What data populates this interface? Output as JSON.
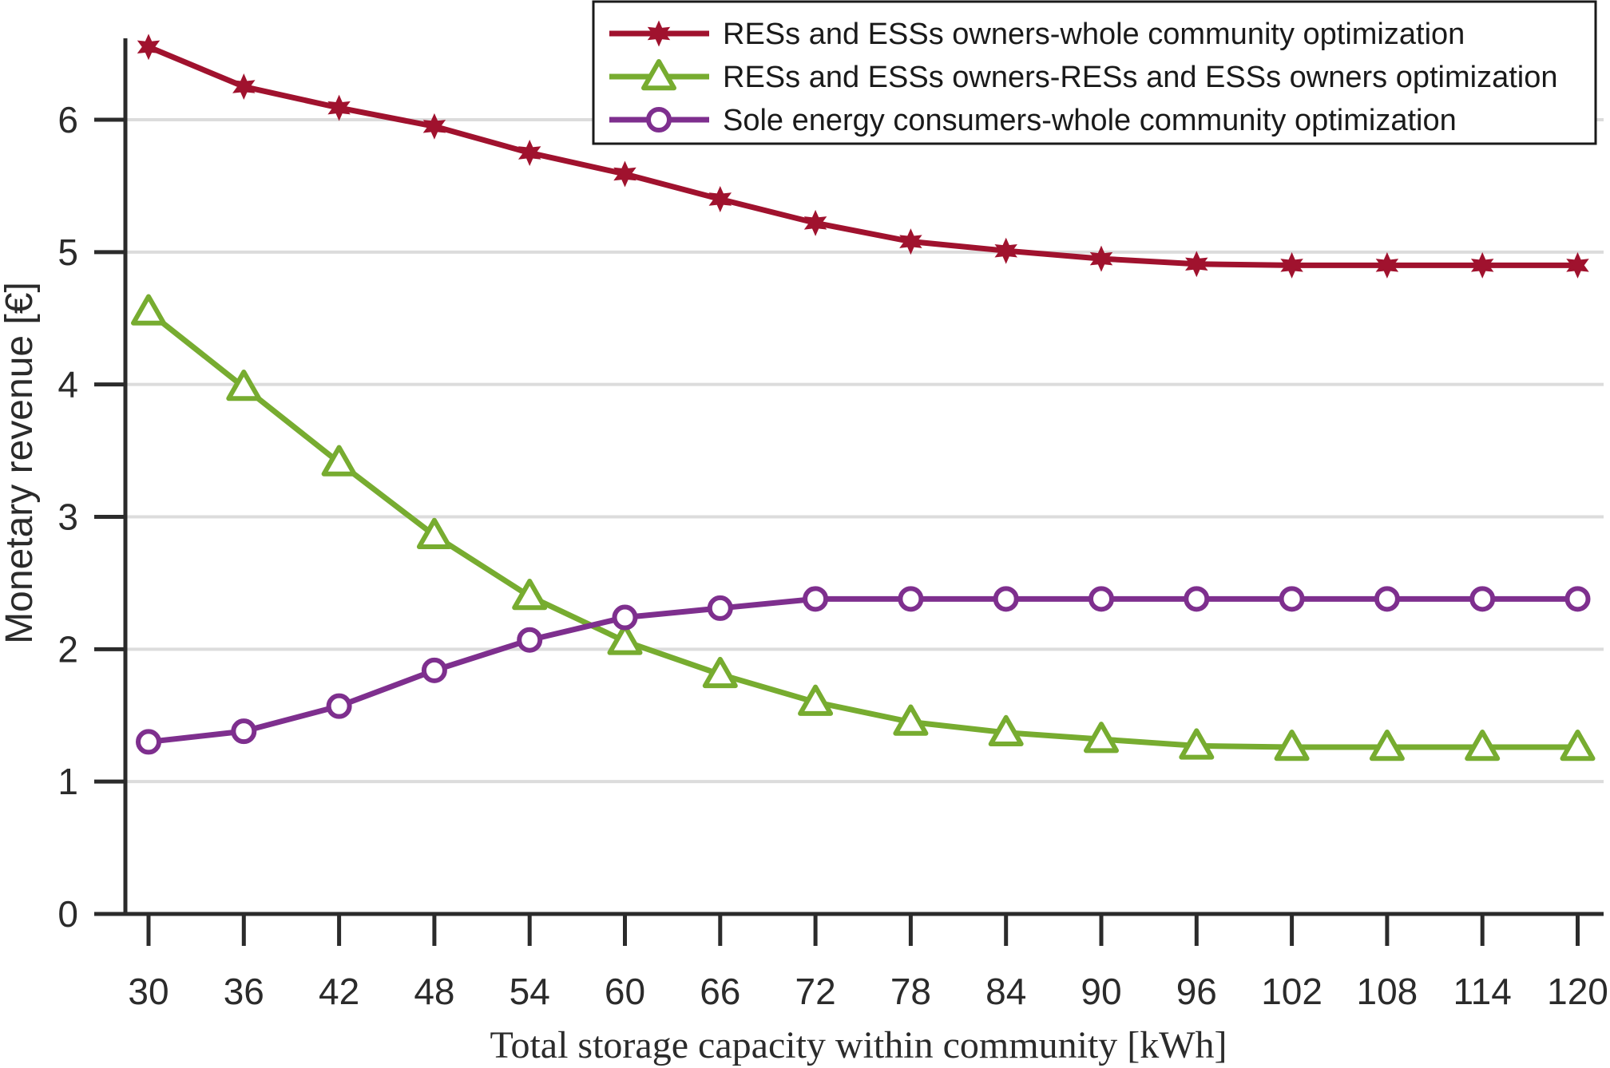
{
  "chart_data": {
    "type": "line",
    "title": "",
    "xlabel": "Total storage capacity within community [kWh]",
    "ylabel": "Monetary revenue [€]",
    "x": [
      30,
      36,
      42,
      48,
      54,
      60,
      66,
      72,
      78,
      84,
      90,
      96,
      102,
      108,
      114,
      120
    ],
    "x_tick_labels": [
      "30",
      "36",
      "42",
      "48",
      "54",
      "60",
      "66",
      "72",
      "78",
      "84",
      "90",
      "96",
      "102",
      "108",
      "114",
      "120"
    ],
    "ylim": [
      0,
      6.5
    ],
    "y_ticks": [
      0,
      1,
      2,
      3,
      4,
      5,
      6
    ],
    "y_tick_labels": [
      "0",
      "1",
      "2",
      "3",
      "4",
      "5",
      "6"
    ],
    "grid": "horizontal",
    "legend_position": "top-right",
    "series": [
      {
        "name": "RESs and ESSs owners-whole community optimization",
        "color": "#a0122e",
        "marker": "star",
        "values": [
          6.55,
          6.25,
          6.09,
          5.95,
          5.75,
          5.59,
          5.4,
          5.22,
          5.08,
          5.01,
          4.95,
          4.91,
          4.9,
          4.9,
          4.9,
          4.9
        ]
      },
      {
        "name": "RESs and ESSs owners-RESs and ESSs owners optimization",
        "color": "#77ac30",
        "marker": "triangle",
        "values": [
          4.55,
          3.98,
          3.41,
          2.86,
          2.4,
          2.06,
          1.81,
          1.6,
          1.45,
          1.37,
          1.32,
          1.27,
          1.26,
          1.26,
          1.26,
          1.26
        ]
      },
      {
        "name": "Sole energy consumers-whole community optimization",
        "color": "#7e2f8e",
        "marker": "circle",
        "values": [
          1.3,
          1.38,
          1.57,
          1.84,
          2.07,
          2.24,
          2.31,
          2.38,
          2.38,
          2.38,
          2.38,
          2.38,
          2.38,
          2.38,
          2.38,
          2.38
        ]
      }
    ]
  }
}
